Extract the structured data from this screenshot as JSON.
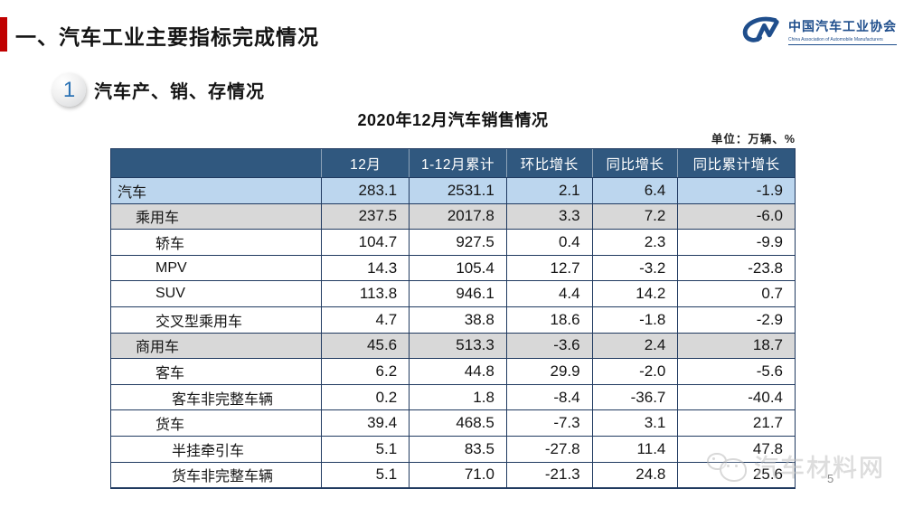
{
  "page": {
    "page_number": "5"
  },
  "header": {
    "title": "一、汽车工业主要指标完成情况",
    "accent_color": "#C00000"
  },
  "logo": {
    "mark": "CM",
    "name_cn": "中国汽车工业协会",
    "name_en": "China Association of Automobile Manufacturers",
    "color": "#1F4E8C"
  },
  "section": {
    "number": "1",
    "title": "汽车产、销、存情况"
  },
  "table": {
    "title": "2020年12月汽车销售情况",
    "unit_note": "单位：万辆、%",
    "header_bg": "#30587F",
    "row_highlight_blue": "#BCD6EE",
    "row_highlight_gray": "#D8D8D8",
    "columns": [
      "",
      "12月",
      "1-12月累计",
      "环比增长",
      "同比增长",
      "同比累计增长"
    ],
    "rows": [
      {
        "label": "汽车",
        "indent": 0,
        "bg": "#BCD6EE",
        "values": [
          "283.1",
          "2531.1",
          "2.1",
          "6.4",
          "-1.9"
        ]
      },
      {
        "label": "乘用车",
        "indent": 1,
        "bg": "#D8D8D8",
        "values": [
          "237.5",
          "2017.8",
          "3.3",
          "7.2",
          "-6.0"
        ]
      },
      {
        "label": "轿车",
        "indent": 2,
        "bg": "#FFFFFF",
        "values": [
          "104.7",
          "927.5",
          "0.4",
          "2.3",
          "-9.9"
        ]
      },
      {
        "label": "MPV",
        "indent": 2,
        "bg": "#FFFFFF",
        "values": [
          "14.3",
          "105.4",
          "12.7",
          "-3.2",
          "-23.8"
        ]
      },
      {
        "label": "SUV",
        "indent": 2,
        "bg": "#FFFFFF",
        "values": [
          "113.8",
          "946.1",
          "4.4",
          "14.2",
          "0.7"
        ]
      },
      {
        "label": "交叉型乘用车",
        "indent": 2,
        "bg": "#FFFFFF",
        "values": [
          "4.7",
          "38.8",
          "18.6",
          "-1.8",
          "-2.9"
        ]
      },
      {
        "label": "商用车",
        "indent": 1,
        "bg": "#D8D8D8",
        "values": [
          "45.6",
          "513.3",
          "-3.6",
          "2.4",
          "18.7"
        ]
      },
      {
        "label": "客车",
        "indent": 2,
        "bg": "#FFFFFF",
        "values": [
          "6.2",
          "44.8",
          "29.9",
          "-2.0",
          "-5.6"
        ]
      },
      {
        "label": "客车非完整车辆",
        "indent": 3,
        "bg": "#FFFFFF",
        "values": [
          "0.2",
          "1.8",
          "-8.4",
          "-36.7",
          "-40.4"
        ]
      },
      {
        "label": "货车",
        "indent": 2,
        "bg": "#FFFFFF",
        "values": [
          "39.4",
          "468.5",
          "-7.3",
          "3.1",
          "21.7"
        ]
      },
      {
        "label": "半挂牵引车",
        "indent": 3,
        "bg": "#FFFFFF",
        "values": [
          "5.1",
          "83.5",
          "-27.8",
          "11.4",
          "47.8"
        ]
      },
      {
        "label": "货车非完整车辆",
        "indent": 3,
        "bg": "#FFFFFF",
        "values": [
          "5.1",
          "71.0",
          "-21.3",
          "24.8",
          "25.6"
        ]
      }
    ]
  },
  "watermark": {
    "text": "汽车材料网"
  }
}
